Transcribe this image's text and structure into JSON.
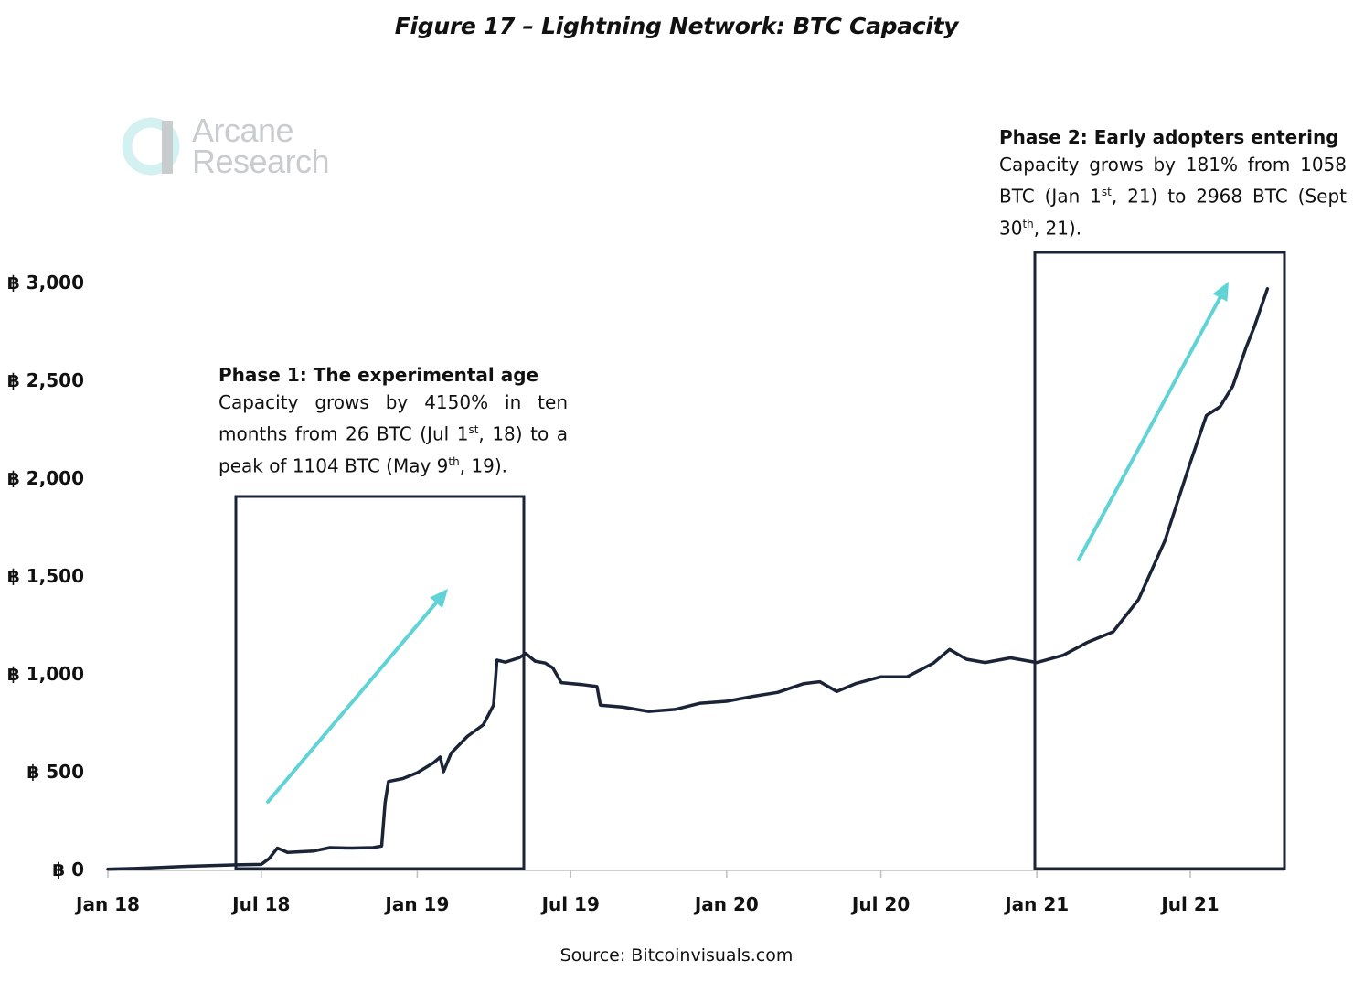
{
  "figure_title": "Figure 17 –  Lightning Network: BTC Capacity",
  "logo": {
    "line1": "Arcane",
    "line2": "Research"
  },
  "source": "Source: Bitcoinvisuals.com",
  "annotations": {
    "phase1": {
      "title": "Phase 1: The experimental age",
      "body": "Capacity grows by 4150% in ten months from 26 BTC (Jul 1st, 18) to a peak of 1104 BTC (May 9th, 19)."
    },
    "phase2": {
      "title": "Phase 2: Early adopters entering",
      "body": "Capacity grows by 181% from 1058 BTC (Jan 1st, 21) to 2968 BTC (Sept 30th, 21)."
    }
  },
  "colors": {
    "line": "#1b2436",
    "arrow": "#5fd3d5",
    "box": "#1b2436",
    "logo": "#c8ccce",
    "logo_accent": "#d3f1f1"
  },
  "chart_data": {
    "type": "line",
    "title": "Figure 17 –  Lightning Network: BTC Capacity",
    "xlabel": "",
    "ylabel": "",
    "ylim": [
      0,
      3000
    ],
    "y_ticks": [
      0,
      500,
      1000,
      1500,
      2000,
      2500,
      3000
    ],
    "y_tick_labels": [
      "฿ 0",
      "฿ 500",
      "฿ 1,000",
      "฿ 1,500",
      "฿ 2,000",
      "฿ 2,500",
      "฿ 3,000"
    ],
    "x_tick_dates": [
      "2018-01-01",
      "2018-07-01",
      "2019-01-01",
      "2019-07-01",
      "2020-01-01",
      "2020-07-01",
      "2021-01-01",
      "2021-07-01"
    ],
    "x_tick_labels": [
      "Jan 18",
      "Jul 18",
      "Jan 19",
      "Jul 19",
      "Jan 20",
      "Jul 20",
      "Jan 21",
      "Jul 21"
    ],
    "grid": false,
    "series": [
      {
        "points": [
          [
            "2018-01-01",
            2
          ],
          [
            "2018-02-01",
            5
          ],
          [
            "2018-03-01",
            10
          ],
          [
            "2018-04-01",
            16
          ],
          [
            "2018-05-01",
            20
          ],
          [
            "2018-06-01",
            24
          ],
          [
            "2018-07-01",
            26
          ],
          [
            "2018-07-10",
            55
          ],
          [
            "2018-07-20",
            110
          ],
          [
            "2018-08-01",
            88
          ],
          [
            "2018-09-01",
            95
          ],
          [
            "2018-09-20",
            112
          ],
          [
            "2018-10-15",
            110
          ],
          [
            "2018-11-10",
            112
          ],
          [
            "2018-11-20",
            120
          ],
          [
            "2018-11-24",
            340
          ],
          [
            "2018-11-28",
            450
          ],
          [
            "2018-12-15",
            465
          ],
          [
            "2019-01-01",
            495
          ],
          [
            "2019-01-20",
            545
          ],
          [
            "2019-01-28",
            575
          ],
          [
            "2019-02-01",
            500
          ],
          [
            "2019-02-10",
            595
          ],
          [
            "2019-03-01",
            680
          ],
          [
            "2019-03-20",
            740
          ],
          [
            "2019-04-01",
            840
          ],
          [
            "2019-04-05",
            1070
          ],
          [
            "2019-04-15",
            1060
          ],
          [
            "2019-05-01",
            1082
          ],
          [
            "2019-05-09",
            1104
          ],
          [
            "2019-05-20",
            1065
          ],
          [
            "2019-06-01",
            1055
          ],
          [
            "2019-06-10",
            1030
          ],
          [
            "2019-06-20",
            955
          ],
          [
            "2019-07-15",
            945
          ],
          [
            "2019-08-01",
            935
          ],
          [
            "2019-08-05",
            840
          ],
          [
            "2019-09-01",
            830
          ],
          [
            "2019-10-01",
            808
          ],
          [
            "2019-11-01",
            818
          ],
          [
            "2019-12-01",
            850
          ],
          [
            "2020-01-01",
            860
          ],
          [
            "2020-02-01",
            885
          ],
          [
            "2020-03-01",
            905
          ],
          [
            "2020-04-01",
            950
          ],
          [
            "2020-04-20",
            960
          ],
          [
            "2020-05-10",
            910
          ],
          [
            "2020-06-01",
            950
          ],
          [
            "2020-07-01",
            985
          ],
          [
            "2020-08-01",
            985
          ],
          [
            "2020-09-01",
            1055
          ],
          [
            "2020-09-20",
            1125
          ],
          [
            "2020-10-10",
            1075
          ],
          [
            "2020-11-01",
            1058
          ],
          [
            "2020-12-01",
            1082
          ],
          [
            "2021-01-01",
            1058
          ],
          [
            "2021-02-01",
            1095
          ],
          [
            "2021-03-01",
            1160
          ],
          [
            "2021-04-01",
            1215
          ],
          [
            "2021-05-01",
            1380
          ],
          [
            "2021-06-01",
            1680
          ],
          [
            "2021-07-01",
            2080
          ],
          [
            "2021-07-20",
            2320
          ],
          [
            "2021-08-05",
            2365
          ],
          [
            "2021-08-20",
            2470
          ],
          [
            "2021-09-05",
            2670
          ],
          [
            "2021-09-15",
            2780
          ],
          [
            "2021-09-30",
            2968
          ]
        ]
      }
    ]
  }
}
